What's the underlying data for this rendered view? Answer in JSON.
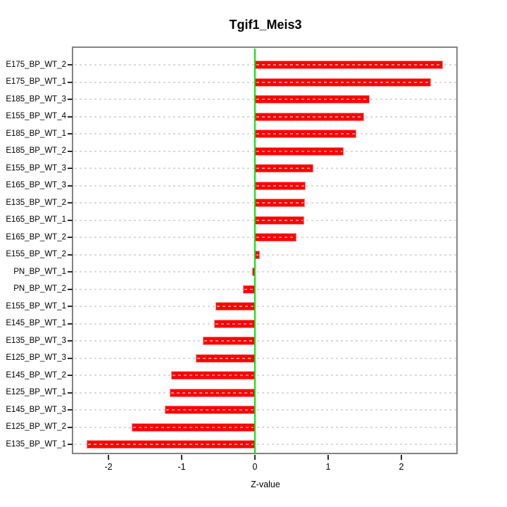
{
  "chart_data": {
    "type": "bar",
    "orientation": "horizontal",
    "title": "Tgif1_Meis3",
    "xlabel": "Z-value",
    "categories": [
      "E175_BP_WT_2",
      "E175_BP_WT_1",
      "E185_BP_WT_3",
      "E155_BP_WT_4",
      "E185_BP_WT_1",
      "E185_BP_WT_2",
      "E155_BP_WT_3",
      "E165_BP_WT_3",
      "E135_BP_WT_2",
      "E165_BP_WT_1",
      "E165_BP_WT_2",
      "E155_BP_WT_2",
      "PN_BP_WT_1",
      "PN_BP_WT_2",
      "E155_BP_WT_1",
      "E145_BP_WT_1",
      "E135_BP_WT_3",
      "E125_BP_WT_3",
      "E145_BP_WT_2",
      "E125_BP_WT_1",
      "E145_BP_WT_3",
      "E125_BP_WT_2",
      "E135_BP_WT_1"
    ],
    "values": [
      2.57,
      2.4,
      1.57,
      1.49,
      1.38,
      1.21,
      0.8,
      0.69,
      0.68,
      0.67,
      0.57,
      0.07,
      -0.04,
      -0.16,
      -0.54,
      -0.56,
      -0.71,
      -0.81,
      -1.14,
      -1.16,
      -1.23,
      -1.68,
      -2.3
    ],
    "xticks": [
      "-2",
      "-1",
      "0",
      "1",
      "2"
    ],
    "xtick_values": [
      -2,
      -1,
      0,
      1,
      2
    ],
    "xlim": [
      -2.48,
      2.77
    ],
    "grid": "dashed horizontal line per category",
    "legend": "none",
    "colors": {
      "bar_fill": "#ff0000",
      "bar_border": "#ff8c8c",
      "zero_line": "#00e400",
      "gridline": "#d9d9d9",
      "box_border": "#848484",
      "tick": "#2b2b2b",
      "text": "#000000"
    }
  }
}
